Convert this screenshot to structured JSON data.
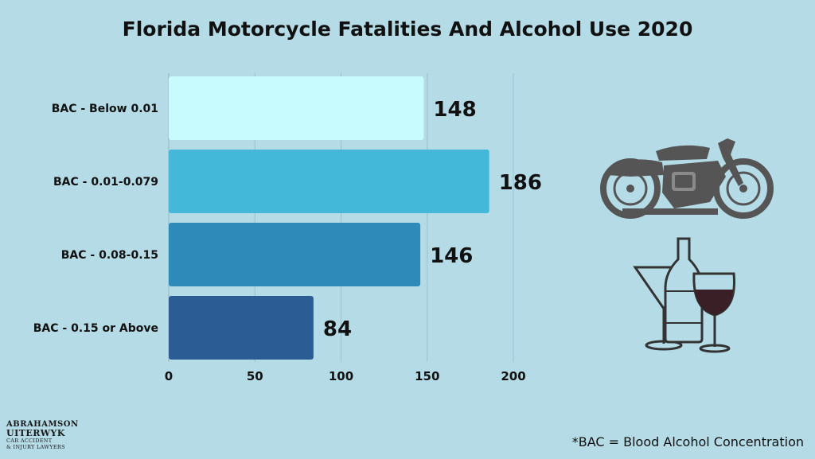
{
  "chart_data": {
    "type": "bar",
    "orientation": "horizontal",
    "title": "Florida Motorcycle Fatalities And Alcohol Use 2020",
    "categories": [
      "BAC - Below 0.01",
      "BAC - 0.01-0.079",
      "BAC - 0.08-0.15",
      "BAC - 0.15 or Above"
    ],
    "values": [
      148,
      186,
      146,
      84
    ],
    "bar_colors": [
      "#c8fbfd",
      "#43b8d8",
      "#2e8bb9",
      "#2c5c94"
    ],
    "xlim": [
      0,
      200
    ],
    "xticks": [
      "0",
      "50",
      "100",
      "150",
      "200"
    ],
    "grid": true
  },
  "footnote": "*BAC = Blood Alcohol Concentration",
  "logo": {
    "line1": "ABRAHAMSON",
    "line2": "UITERWYK",
    "line3": "CAR ACCIDENT",
    "line4": "& INJURY LAWYERS"
  },
  "icons": [
    "motorcycle-icon",
    "drinks-icon"
  ]
}
